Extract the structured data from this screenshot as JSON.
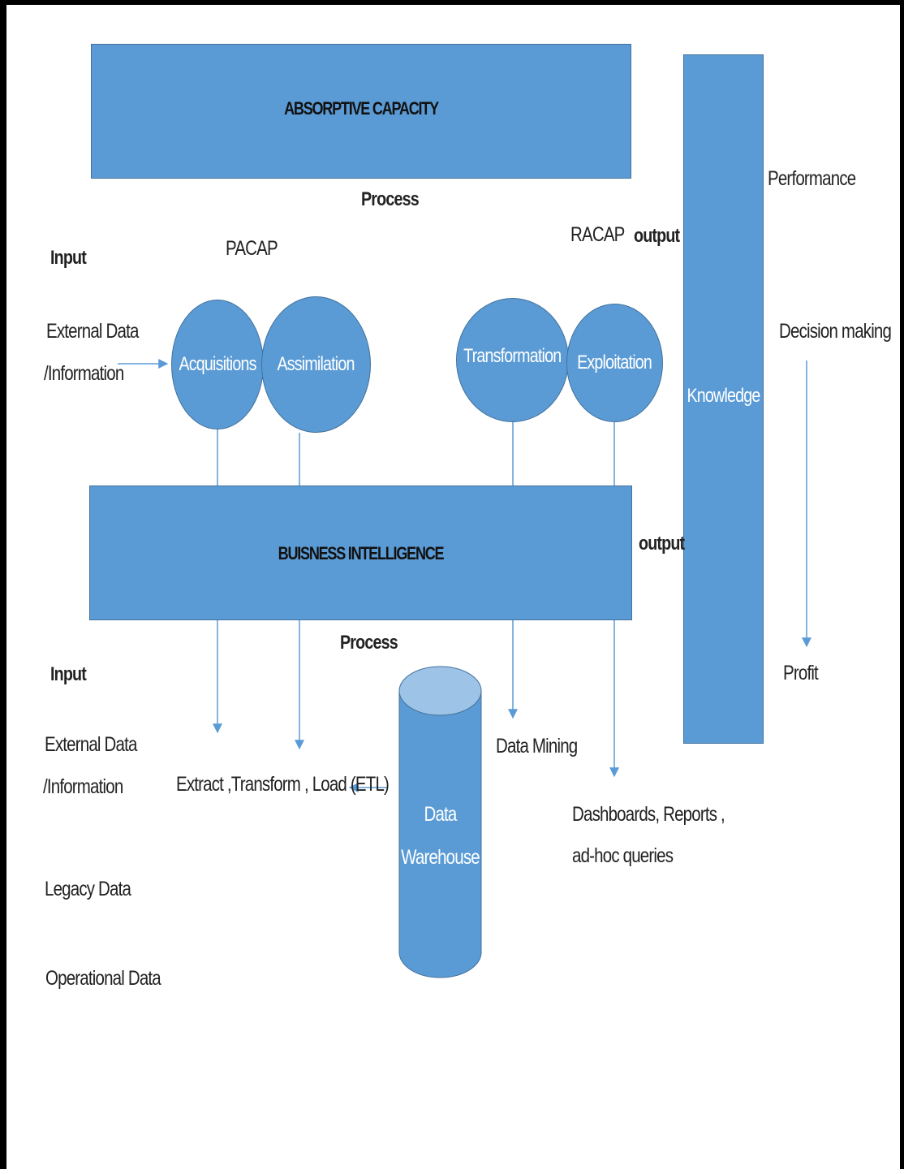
{
  "boxes": {
    "absorptive": "ABSORPTIVE CAPACITY",
    "business": "BUISNESS INTELLIGENCE",
    "knowledge": "Knowledge"
  },
  "labels": {
    "process_top": "Process",
    "process_bottom": "Process",
    "input_top": "Input",
    "input_bottom": "Input",
    "output_top": "output",
    "output_mid": "output",
    "pacap": "PACAP",
    "racap": "RACAP",
    "ext_data_1": "External  Data",
    "ext_info_1": "/Information",
    "ext_data_2": "External  Data",
    "ext_info_2": "/Information",
    "legacy": "Legacy Data",
    "operational": "Operational Data",
    "etl": "Extract ,Transform , Load  (ETL)",
    "data_mining": "Data Mining",
    "dashboards_1": "Dashboards, Reports ,",
    "dashboards_2": "ad-hoc queries",
    "performance": "Performance",
    "decision": "Decision making",
    "profit": "Profit"
  },
  "circles": {
    "acquisitions": "Acquisitions",
    "assimilation": "Assimilation",
    "transformation": "Transformation",
    "exploitation": "Exploitation"
  },
  "warehouse": {
    "line1": "Data",
    "line2": "Warehouse"
  },
  "colors": {
    "fill": "#5b9bd5",
    "stroke": "#41719c",
    "top": "#9dc3e6"
  }
}
